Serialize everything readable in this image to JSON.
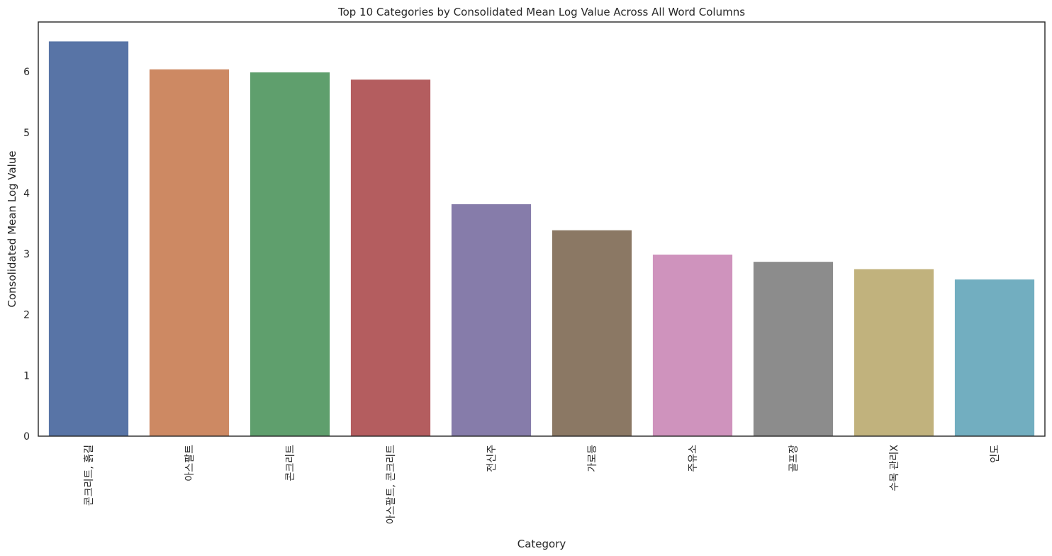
{
  "chart_data": {
    "type": "bar",
    "title": "Top 10 Categories by Consolidated Mean Log Value Across All Word Columns",
    "xlabel": "Category",
    "ylabel": "Consolidated Mean Log Value",
    "categories": [
      "콘크리트, 흙길",
      "아스팔트",
      "콘크리트",
      "아스팔트, 콘크리트",
      "전신주",
      "가로등",
      "주유소",
      "골프장",
      "수목 관리X",
      "인도"
    ],
    "values": [
      6.5,
      6.04,
      5.99,
      5.87,
      3.82,
      3.39,
      2.99,
      2.87,
      2.75,
      2.58
    ],
    "colors": [
      "#5874a6",
      "#cd8963",
      "#5f9f6d",
      "#b45d5f",
      "#867caa",
      "#8b7864",
      "#cf93bd",
      "#8c8c8c",
      "#c1b27d",
      "#72aec0"
    ],
    "ylim": [
      0,
      6.82
    ],
    "yticks": [
      0,
      1,
      2,
      3,
      4,
      5,
      6
    ],
    "grid": false,
    "legend": false
  }
}
